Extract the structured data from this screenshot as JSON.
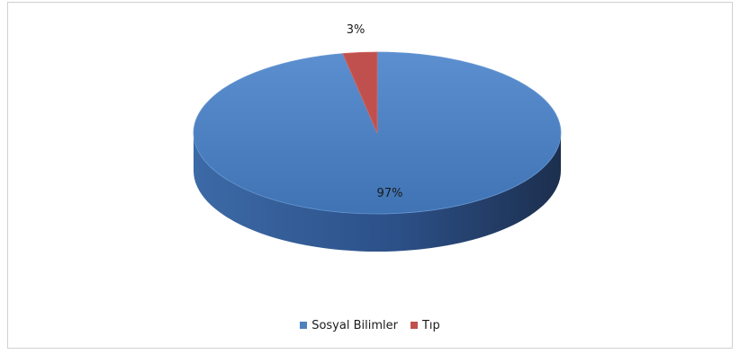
{
  "chart_data": {
    "type": "pie",
    "style": "3d",
    "categories": [
      "Sosyal Bilimler",
      "Tıp"
    ],
    "values": [
      97,
      3
    ],
    "data_labels": [
      "97%",
      "3%"
    ],
    "colors": [
      "#4f81bd",
      "#c0504d"
    ],
    "side_colors": [
      "#2a4a74",
      "#7a2b29"
    ],
    "legend": "bottom"
  }
}
